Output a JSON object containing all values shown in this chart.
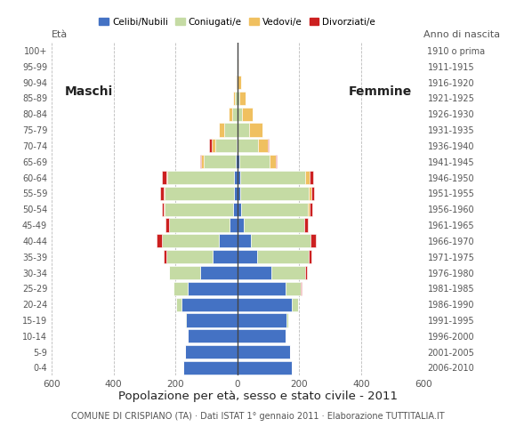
{
  "age_groups": [
    "0-4",
    "5-9",
    "10-14",
    "15-19",
    "20-24",
    "25-29",
    "30-34",
    "35-39",
    "40-44",
    "45-49",
    "50-54",
    "55-59",
    "60-64",
    "65-69",
    "70-74",
    "75-79",
    "80-84",
    "85-89",
    "90-94",
    "95-99",
    "100+"
  ],
  "birth_years": [
    "2006-2010",
    "2001-2005",
    "1996-2000",
    "1991-1995",
    "1986-1990",
    "1981-1985",
    "1976-1980",
    "1971-1975",
    "1966-1970",
    "1961-1965",
    "1956-1960",
    "1951-1955",
    "1946-1950",
    "1941-1945",
    "1936-1940",
    "1931-1935",
    "1926-1930",
    "1921-1925",
    "1916-1920",
    "1911-1915",
    "1910 o prima"
  ],
  "males": {
    "celibe": [
      175,
      170,
      160,
      165,
      180,
      160,
      120,
      80,
      60,
      25,
      15,
      10,
      10,
      5,
      2,
      0,
      0,
      0,
      0,
      0,
      0
    ],
    "coniugato": [
      0,
      0,
      0,
      5,
      18,
      45,
      100,
      150,
      185,
      195,
      220,
      225,
      215,
      105,
      70,
      42,
      18,
      8,
      3,
      1,
      0
    ],
    "vedovo": [
      0,
      0,
      0,
      0,
      0,
      0,
      0,
      0,
      0,
      1,
      2,
      3,
      5,
      8,
      12,
      18,
      10,
      5,
      2,
      1,
      0
    ],
    "divorziato": [
      0,
      0,
      0,
      0,
      0,
      0,
      2,
      8,
      15,
      10,
      8,
      12,
      15,
      2,
      8,
      0,
      0,
      0,
      0,
      0,
      0
    ]
  },
  "females": {
    "nubile": [
      175,
      170,
      155,
      160,
      175,
      155,
      110,
      65,
      45,
      20,
      12,
      10,
      8,
      5,
      2,
      0,
      0,
      0,
      0,
      0,
      0
    ],
    "coniugata": [
      0,
      0,
      0,
      5,
      20,
      50,
      110,
      165,
      190,
      195,
      215,
      220,
      210,
      100,
      65,
      38,
      15,
      5,
      2,
      0,
      0
    ],
    "vedova": [
      0,
      0,
      0,
      0,
      0,
      0,
      0,
      0,
      1,
      2,
      5,
      8,
      15,
      20,
      30,
      42,
      35,
      22,
      10,
      4,
      1
    ],
    "divorziata": [
      0,
      0,
      0,
      0,
      0,
      2,
      5,
      10,
      18,
      12,
      10,
      10,
      12,
      2,
      5,
      0,
      0,
      0,
      0,
      0,
      0
    ]
  },
  "color_celibe": "#4472c4",
  "color_coniugato": "#c5dba4",
  "color_vedovo": "#f0c060",
  "color_divorziato": "#cc2020",
  "xlim": 600,
  "title": "Popolazione per età, sesso e stato civile - 2011",
  "subtitle": "COMUNE DI CRISPIANO (TA) · Dati ISTAT 1° gennaio 2011 · Elaborazione TUTTITALIA.IT",
  "ylabel_left": "Età",
  "ylabel_right": "Anno di nascita",
  "label_maschi": "Maschi",
  "label_femmine": "Femmine",
  "legend_labels": [
    "Celibi/Nubili",
    "Coniugati/e",
    "Vedovi/e",
    "Divorziati/e"
  ],
  "background_color": "#ffffff",
  "bar_height": 0.85
}
